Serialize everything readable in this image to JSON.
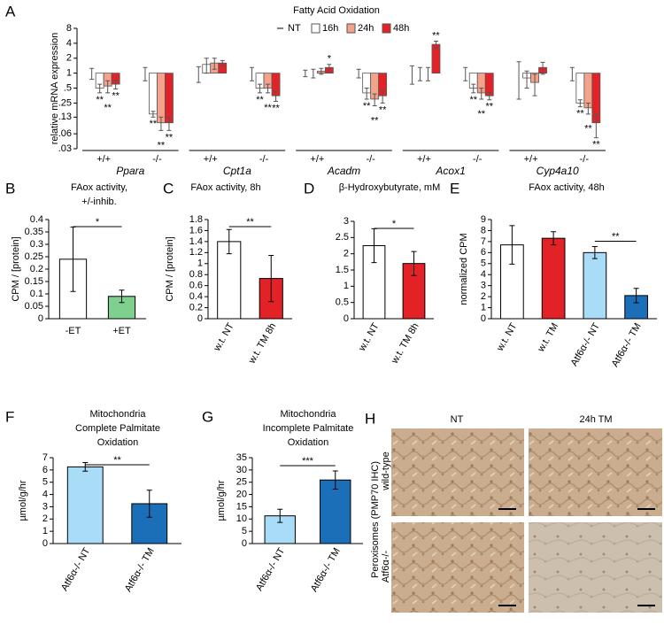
{
  "chart_data": [
    {
      "type": "bar",
      "panel_label": "A",
      "title": "Fatty Acid Oxidation",
      "ylabel": "relative mRNA expression",
      "log_scale": true,
      "categories": [
        "+/+",
        "-/-",
        "+/+",
        "-/-",
        "+/+",
        "-/-",
        "+/+",
        "-/-",
        "+/+",
        "-/-"
      ],
      "groups": [
        "Ppara",
        "Cpt1a",
        "Acadm",
        "Acox1",
        "Cyp4a10"
      ],
      "series": [
        {
          "name": "NT",
          "color": "#ffffff",
          "legend_marker": "dash",
          "values": [
            1,
            1,
            1,
            1,
            1,
            1,
            1,
            1,
            1,
            1
          ],
          "errors": [
            0.25,
            0.3,
            0.35,
            0.3,
            0.15,
            0.2,
            0.4,
            0.3,
            0.7,
            0.3
          ]
        },
        {
          "name": "16h",
          "color": "#ffffff",
          "values": [
            0.5,
            0.15,
            1.5,
            0.5,
            1.0,
            0.4,
            1.0,
            0.5,
            0.8,
            0.25
          ],
          "errors": [
            0.1,
            0.02,
            0.5,
            0.1,
            0.2,
            0.1,
            0.3,
            0.1,
            0.3,
            0.04
          ],
          "significance": [
            "**",
            "**",
            null,
            "**",
            null,
            "**",
            null,
            "**",
            null,
            "**"
          ]
        },
        {
          "name": "24h",
          "color": "#f4a38a",
          "values": [
            0.55,
            0.1,
            1.6,
            0.5,
            1.1,
            0.3,
            1.0,
            0.4,
            0.65,
            0.2
          ],
          "errors": [
            0.15,
            0.03,
            0.4,
            0.1,
            0.15,
            0.08,
            0.3,
            0.1,
            0.3,
            0.05
          ],
          "significance": [
            "**",
            "**",
            null,
            "**",
            null,
            "**",
            null,
            "**",
            null,
            "**"
          ]
        },
        {
          "name": "48h",
          "color": "#e32228",
          "values": [
            0.6,
            0.1,
            1.6,
            0.35,
            1.3,
            0.35,
            3.8,
            0.35,
            1.3,
            0.1
          ],
          "errors": [
            0.12,
            0.03,
            0.2,
            0.08,
            0.2,
            0.1,
            0.6,
            0.06,
            0.35,
            0.05
          ],
          "significance": [
            "**",
            "**",
            null,
            "**",
            "*",
            "**",
            "**",
            "**",
            null,
            "**"
          ]
        }
      ],
      "ylim": [
        0.03,
        8
      ],
      "yticks": [
        {
          "value": 0.03,
          "label": ".03"
        },
        {
          "value": 0.06,
          "label": ".06"
        },
        {
          "value": 0.13,
          "label": ".13"
        },
        {
          "value": 0.25,
          "label": ".25"
        },
        {
          "value": 0.5,
          "label": ".5"
        },
        1,
        2,
        4,
        8
      ]
    },
    {
      "type": "bar",
      "panel_label": "B",
      "title": [
        "FAox activity,",
        "+/-inhib."
      ],
      "ylabel": "CPM / [protein]",
      "categories": [
        "-ET",
        "+ET"
      ],
      "values": [
        0.24,
        0.09
      ],
      "errors": [
        0.13,
        0.025
      ],
      "colors": [
        "#ffffff",
        "#7fcf8e"
      ],
      "significance": {
        "label": "*",
        "between": [
          0,
          1
        ]
      },
      "ylim": [
        0,
        0.4
      ],
      "yticks": [
        0,
        0.05,
        0.1,
        0.15,
        0.2,
        0.25,
        0.3,
        0.35,
        0.4
      ]
    },
    {
      "type": "bar",
      "panel_label": "C",
      "title": [
        "FAox activity, 8h"
      ],
      "ylabel": "CPM / [protein]",
      "categories": [
        "w.t. NT",
        "w.t. TM 8h"
      ],
      "values": [
        1.4,
        0.73
      ],
      "errors": [
        0.22,
        0.42
      ],
      "colors": [
        "#ffffff",
        "#e32228"
      ],
      "significance": {
        "label": "**",
        "between": [
          0,
          1
        ]
      },
      "ylim": [
        0,
        1.8
      ],
      "yticks": [
        0,
        0.2,
        0.4,
        0.6,
        0.8,
        1,
        1.2,
        1.4,
        1.6,
        1.8
      ]
    },
    {
      "type": "bar",
      "panel_label": "D",
      "title": [
        "β-Hydroxybutyrate, mM"
      ],
      "categories": [
        "w.t. NT",
        "w.t. TM 8h"
      ],
      "values": [
        2.25,
        1.7
      ],
      "errors": [
        0.52,
        0.37
      ],
      "colors": [
        "#ffffff",
        "#e32228"
      ],
      "significance": {
        "label": "*",
        "between": [
          0,
          1
        ]
      },
      "ylim": [
        0,
        3
      ],
      "yticks": [
        0,
        0.5,
        1,
        1.5,
        2,
        2.5,
        3
      ]
    },
    {
      "type": "bar",
      "panel_label": "E",
      "title": [
        "FAox activity, 48h"
      ],
      "ylabel": "normalized CPM",
      "categories": [
        "w.t. NT",
        "w.t. TM",
        "Atf6α-/- NT",
        "Atf6α-/- TM"
      ],
      "values": [
        6.7,
        7.3,
        6.0,
        2.1
      ],
      "errors": [
        1.75,
        0.6,
        0.55,
        0.65
      ],
      "colors": [
        "#ffffff",
        "#e32228",
        "#a8dcf7",
        "#1a6fb8"
      ],
      "significance": {
        "label": "**",
        "between": [
          2,
          3
        ]
      },
      "ylim": [
        0,
        9
      ],
      "yticks": [
        0,
        1,
        2,
        3,
        4,
        5,
        6,
        7,
        8,
        9
      ]
    },
    {
      "type": "bar",
      "panel_label": "F",
      "title": [
        "Mitochondria",
        "Complete Palmitate",
        "Oxidation"
      ],
      "ylabel": "µmol/g/hr",
      "categories": [
        "Atf6α-/- NT",
        "Atf6α-/- TM"
      ],
      "values": [
        6.25,
        3.25
      ],
      "errors": [
        0.35,
        1.1
      ],
      "colors": [
        "#a8dcf7",
        "#1a6fb8"
      ],
      "significance": {
        "label": "**",
        "between": [
          0,
          1
        ]
      },
      "ylim": [
        0,
        7
      ],
      "yticks": [
        0,
        1,
        2,
        3,
        4,
        5,
        6,
        7
      ]
    },
    {
      "type": "bar",
      "panel_label": "G",
      "title": [
        "Mitochondria",
        "Incomplete Palmitate",
        "Oxidation"
      ],
      "ylabel": "µmol/g/hr",
      "categories": [
        "Atf6α-/- NT",
        "Atf6α-/- TM"
      ],
      "values": [
        11.3,
        25.9
      ],
      "errors": [
        2.7,
        3.7
      ],
      "colors": [
        "#a8dcf7",
        "#1a6fb8"
      ],
      "significance": {
        "label": "***",
        "between": [
          0,
          1
        ]
      },
      "ylim": [
        0,
        35
      ],
      "yticks": [
        0,
        5,
        10,
        15,
        20,
        25,
        30,
        35
      ]
    }
  ],
  "image_panel": {
    "panel_label": "H",
    "columns": [
      "NT",
      "24h TM"
    ],
    "row_title": "Peroxisomes (PMP70 IHC)",
    "rows": [
      "wild-type",
      "Atf6α-/-"
    ]
  }
}
